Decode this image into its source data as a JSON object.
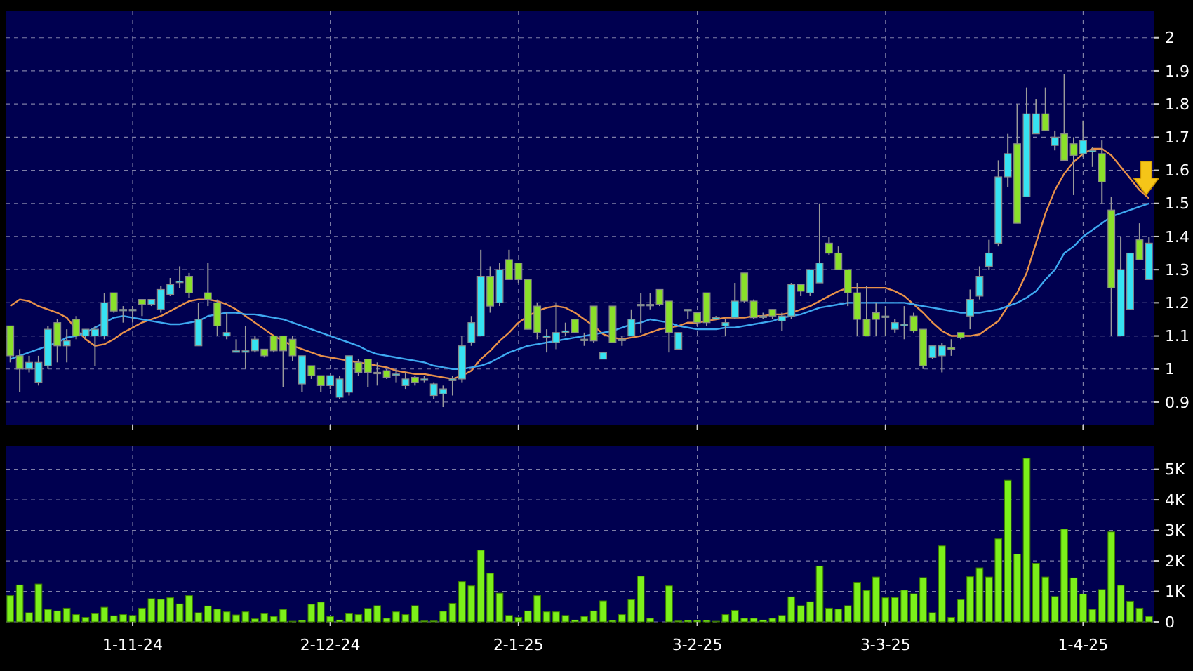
{
  "chart_data": [
    {
      "type": "candlestick",
      "categories": [
        null,
        null,
        null,
        null,
        null,
        null,
        null,
        null,
        null,
        null,
        null,
        null,
        null,
        null,
        null,
        null,
        null,
        null,
        null,
        null,
        null,
        null,
        null,
        null,
        null,
        null,
        null,
        null,
        null,
        null,
        null,
        null,
        null,
        null,
        null,
        null,
        null,
        null,
        null,
        null,
        null,
        null,
        null,
        null,
        null,
        null,
        null,
        null,
        null,
        null,
        null,
        null,
        null,
        null,
        null,
        null,
        null,
        null,
        null,
        null,
        null,
        null,
        null,
        null,
        null,
        null,
        null,
        null,
        null,
        null,
        null,
        null,
        null,
        null,
        null,
        null,
        null,
        null,
        null,
        null,
        null,
        null,
        null,
        null,
        null,
        null,
        null,
        null,
        null,
        null,
        null,
        null,
        null,
        null,
        null,
        null,
        null,
        null,
        null,
        null,
        null,
        null,
        null,
        null,
        null,
        null,
        null,
        null,
        null,
        null,
        null,
        null,
        null,
        null,
        null,
        null,
        null,
        null,
        null,
        null,
        null,
        null
      ],
      "ohlc": [
        [
          1.13,
          1.13,
          1.02,
          1.04
        ],
        [
          1.04,
          1.06,
          0.93,
          1.0
        ],
        [
          1.0,
          1.04,
          0.99,
          1.02
        ],
        [
          0.96,
          1.04,
          0.95,
          1.02
        ],
        [
          1.01,
          1.13,
          1.0,
          1.12
        ],
        [
          1.14,
          1.15,
          1.02,
          1.07
        ],
        [
          1.07,
          1.12,
          1.02,
          1.085
        ],
        [
          1.15,
          1.16,
          1.09,
          1.1
        ],
        [
          1.1,
          1.12,
          1.09,
          1.12
        ],
        [
          1.1,
          1.13,
          1.01,
          1.12
        ],
        [
          1.1,
          1.23,
          1.09,
          1.2
        ],
        [
          1.23,
          1.23,
          1.17,
          1.175
        ],
        [
          1.18,
          1.19,
          1.14,
          1.18
        ],
        [
          1.18,
          1.19,
          1.14,
          1.18
        ],
        [
          1.21,
          1.21,
          1.16,
          1.195
        ],
        [
          1.195,
          1.21,
          1.19,
          1.21
        ],
        [
          1.18,
          1.25,
          1.17,
          1.24
        ],
        [
          1.225,
          1.275,
          1.22,
          1.255
        ],
        [
          1.265,
          1.31,
          1.245,
          1.265
        ],
        [
          1.28,
          1.29,
          1.215,
          1.23
        ],
        [
          1.07,
          1.2,
          1.07,
          1.15
        ],
        [
          1.23,
          1.32,
          1.19,
          1.21
        ],
        [
          1.2,
          1.21,
          1.1,
          1.13
        ],
        [
          1.1,
          1.17,
          1.09,
          1.11
        ],
        [
          1.055,
          1.09,
          1.05,
          1.055
        ],
        [
          1.055,
          1.13,
          1.0,
          1.055
        ],
        [
          1.055,
          1.1,
          1.05,
          1.09
        ],
        [
          1.06,
          1.06,
          1.035,
          1.04
        ],
        [
          1.1,
          1.1,
          1.05,
          1.055
        ],
        [
          1.1,
          1.1,
          0.945,
          1.055
        ],
        [
          1.09,
          1.1,
          1.025,
          1.04
        ],
        [
          0.955,
          1.04,
          0.93,
          1.04
        ],
        [
          1.01,
          1.01,
          0.97,
          0.98
        ],
        [
          0.98,
          0.98,
          0.93,
          0.95
        ],
        [
          0.95,
          0.98,
          0.94,
          0.98
        ],
        [
          0.915,
          0.98,
          0.91,
          0.97
        ],
        [
          0.93,
          1.04,
          0.92,
          1.04
        ],
        [
          1.02,
          1.03,
          0.98,
          0.99
        ],
        [
          1.03,
          1.03,
          0.945,
          0.99
        ],
        [
          0.99,
          1.02,
          0.95,
          0.99
        ],
        [
          0.995,
          1.0,
          0.97,
          0.975
        ],
        [
          0.985,
          1.0,
          0.96,
          0.985
        ],
        [
          0.95,
          0.99,
          0.94,
          0.97
        ],
        [
          0.975,
          0.98,
          0.95,
          0.96
        ],
        [
          0.97,
          0.98,
          0.96,
          0.97
        ],
        [
          0.92,
          0.96,
          0.91,
          0.955
        ],
        [
          0.925,
          0.95,
          0.885,
          0.94
        ],
        [
          0.965,
          0.98,
          0.92,
          0.97
        ],
        [
          0.97,
          1.1,
          0.96,
          1.07
        ],
        [
          1.08,
          1.16,
          1.07,
          1.14
        ],
        [
          1.1,
          1.36,
          1.1,
          1.28
        ],
        [
          1.28,
          1.31,
          1.17,
          1.19
        ],
        [
          1.2,
          1.32,
          1.19,
          1.3
        ],
        [
          1.33,
          1.36,
          1.27,
          1.27
        ],
        [
          1.32,
          1.32,
          1.26,
          1.27
        ],
        [
          1.27,
          1.27,
          1.12,
          1.12
        ],
        [
          1.19,
          1.2,
          1.09,
          1.11
        ],
        [
          1.1,
          1.12,
          1.05,
          1.1
        ],
        [
          1.08,
          1.2,
          1.06,
          1.11
        ],
        [
          1.115,
          1.14,
          1.1,
          1.115
        ],
        [
          1.15,
          1.15,
          1.11,
          1.11
        ],
        [
          1.09,
          1.11,
          1.07,
          1.09
        ],
        [
          1.19,
          1.19,
          1.08,
          1.085
        ],
        [
          1.03,
          1.05,
          1.03,
          1.05
        ],
        [
          1.19,
          1.19,
          1.08,
          1.08
        ],
        [
          1.09,
          1.1,
          1.07,
          1.09
        ],
        [
          1.1,
          1.18,
          1.1,
          1.15
        ],
        [
          1.195,
          1.23,
          1.11,
          1.195
        ],
        [
          1.195,
          1.23,
          1.18,
          1.195
        ],
        [
          1.24,
          1.24,
          1.19,
          1.195
        ],
        [
          1.205,
          1.205,
          1.05,
          1.11
        ],
        [
          1.06,
          1.11,
          1.06,
          1.11
        ],
        [
          1.18,
          1.18,
          1.15,
          1.18
        ],
        [
          1.17,
          1.17,
          1.13,
          1.14
        ],
        [
          1.23,
          1.23,
          1.13,
          1.14
        ],
        [
          1.155,
          1.16,
          1.15,
          1.155
        ],
        [
          1.13,
          1.15,
          1.1,
          1.14
        ],
        [
          1.155,
          1.26,
          1.15,
          1.205
        ],
        [
          1.29,
          1.29,
          1.2,
          1.205
        ],
        [
          1.205,
          1.21,
          1.15,
          1.155
        ],
        [
          1.16,
          1.17,
          1.15,
          1.16
        ],
        [
          1.18,
          1.18,
          1.15,
          1.16
        ],
        [
          1.145,
          1.17,
          1.115,
          1.16
        ],
        [
          1.16,
          1.26,
          1.15,
          1.255
        ],
        [
          1.255,
          1.255,
          1.22,
          1.235
        ],
        [
          1.23,
          1.3,
          1.22,
          1.3
        ],
        [
          1.26,
          1.5,
          1.26,
          1.32
        ],
        [
          1.38,
          1.4,
          1.345,
          1.35
        ],
        [
          1.35,
          1.37,
          1.3,
          1.3
        ],
        [
          1.3,
          1.3,
          1.19,
          1.23
        ],
        [
          1.23,
          1.26,
          1.1,
          1.15
        ],
        [
          1.15,
          1.25,
          1.1,
          1.1
        ],
        [
          1.17,
          1.2,
          1.1,
          1.15
        ],
        [
          1.16,
          1.19,
          1.1,
          1.16
        ],
        [
          1.12,
          1.15,
          1.11,
          1.14
        ],
        [
          1.135,
          1.19,
          1.09,
          1.135
        ],
        [
          1.16,
          1.17,
          1.11,
          1.115
        ],
        [
          1.12,
          1.12,
          1.0,
          1.01
        ],
        [
          1.035,
          1.07,
          1.03,
          1.07
        ],
        [
          1.04,
          1.08,
          0.99,
          1.07
        ],
        [
          1.065,
          1.09,
          1.04,
          1.06
        ],
        [
          1.11,
          1.11,
          1.09,
          1.095
        ],
        [
          1.16,
          1.24,
          1.12,
          1.21
        ],
        [
          1.22,
          1.31,
          1.21,
          1.28
        ],
        [
          1.31,
          1.39,
          1.3,
          1.35
        ],
        [
          1.38,
          1.63,
          1.37,
          1.58
        ],
        [
          1.58,
          1.71,
          1.55,
          1.65
        ],
        [
          1.68,
          1.8,
          1.44,
          1.44
        ],
        [
          1.52,
          1.85,
          1.52,
          1.77
        ],
        [
          1.71,
          1.815,
          1.71,
          1.77
        ],
        [
          1.77,
          1.85,
          1.72,
          1.72
        ],
        [
          1.675,
          1.72,
          1.66,
          1.7
        ],
        [
          1.71,
          1.89,
          1.63,
          1.63
        ],
        [
          1.68,
          1.7,
          1.525,
          1.645
        ],
        [
          1.65,
          1.75,
          1.64,
          1.69
        ],
        [
          1.66,
          1.67,
          1.61,
          1.66
        ],
        [
          1.65,
          1.69,
          1.5,
          1.565
        ],
        [
          1.48,
          1.52,
          1.1,
          1.245
        ],
        [
          1.1,
          1.4,
          1.1,
          1.3
        ],
        [
          1.18,
          1.35,
          1.18,
          1.35
        ],
        [
          1.39,
          1.44,
          1.33,
          1.33
        ],
        [
          1.27,
          1.4,
          1.27,
          1.38
        ]
      ],
      "colors": [
        "#8ae02a",
        "#8ae02a",
        "#36e2f2",
        "#36e2f2",
        "#36e2f2",
        "#8ae02a",
        "#36e2f2",
        "#8ae02a",
        "#36e2f2",
        "#36e2f2",
        "#36e2f2",
        "#8ae02a",
        "#36e2f2",
        "#36e2f2",
        "#8ae02a",
        "#36e2f2",
        "#36e2f2",
        "#36e2f2",
        "#36e2f2",
        "#8ae02a",
        "#36e2f2",
        "#8ae02a",
        "#8ae02a",
        "#36e2f2",
        "#36e2f2",
        "#36e2f2",
        "#36e2f2",
        "#8ae02a",
        "#8ae02a",
        "#8ae02a",
        "#8ae02a",
        "#36e2f2",
        "#8ae02a",
        "#8ae02a",
        "#36e2f2",
        "#36e2f2",
        "#36e2f2",
        "#8ae02a",
        "#8ae02a",
        "#36e2f2",
        "#8ae02a",
        "#36e2f2",
        "#36e2f2",
        "#8ae02a",
        "#36e2f2",
        "#36e2f2",
        "#36e2f2",
        "#36e2f2",
        "#36e2f2",
        "#36e2f2",
        "#36e2f2",
        "#8ae02a",
        "#36e2f2",
        "#8ae02a",
        "#8ae02a",
        "#8ae02a",
        "#8ae02a",
        "#36e2f2",
        "#36e2f2",
        "#36e2f2",
        "#8ae02a",
        "#36e2f2",
        "#8ae02a",
        "#36e2f2",
        "#8ae02a",
        "#36e2f2",
        "#36e2f2",
        "#36e2f2",
        "#36e2f2",
        "#8ae02a",
        "#8ae02a",
        "#36e2f2",
        "#36e2f2",
        "#8ae02a",
        "#8ae02a",
        "#36e2f2",
        "#36e2f2",
        "#36e2f2",
        "#8ae02a",
        "#8ae02a",
        "#36e2f2",
        "#8ae02a",
        "#36e2f2",
        "#36e2f2",
        "#8ae02a",
        "#36e2f2",
        "#36e2f2",
        "#8ae02a",
        "#8ae02a",
        "#8ae02a",
        "#8ae02a",
        "#8ae02a",
        "#8ae02a",
        "#36e2f2",
        "#36e2f2",
        "#36e2f2",
        "#8ae02a",
        "#8ae02a",
        "#36e2f2",
        "#36e2f2",
        "#8ae02a",
        "#8ae02a",
        "#36e2f2",
        "#36e2f2",
        "#36e2f2",
        "#36e2f2",
        "#36e2f2",
        "#8ae02a",
        "#36e2f2",
        "#36e2f2",
        "#8ae02a",
        "#36e2f2",
        "#8ae02a",
        "#8ae02a",
        "#36e2f2",
        "#36e2f2",
        "#8ae02a",
        "#8ae02a",
        "#36e2f2",
        "#36e2f2",
        "#8ae02a",
        "#36e2f2"
      ],
      "series": [
        {
          "type": "line",
          "color": "#e8914a",
          "values": [
            1.19,
            1.21,
            1.205,
            1.19,
            1.18,
            1.17,
            1.155,
            1.12,
            1.09,
            1.07,
            1.075,
            1.09,
            1.11,
            1.125,
            1.14,
            1.15,
            1.16,
            1.175,
            1.19,
            1.205,
            1.21,
            1.21,
            1.205,
            1.195,
            1.18,
            1.16,
            1.14,
            1.12,
            1.1,
            1.085,
            1.07,
            1.06,
            1.05,
            1.04,
            1.035,
            1.03,
            1.025,
            1.02,
            1.015,
            1.01,
            1.005,
            0.995,
            0.99,
            0.985,
            0.985,
            0.98,
            0.975,
            0.97,
            0.98,
            0.995,
            1.03,
            1.055,
            1.085,
            1.11,
            1.14,
            1.16,
            1.175,
            1.185,
            1.19,
            1.185,
            1.17,
            1.15,
            1.13,
            1.105,
            1.095,
            1.09,
            1.095,
            1.1,
            1.11,
            1.12,
            1.125,
            1.13,
            1.14,
            1.14,
            1.145,
            1.15,
            1.155,
            1.155,
            1.155,
            1.16,
            1.16,
            1.165,
            1.165,
            1.17,
            1.18,
            1.19,
            1.205,
            1.22,
            1.235,
            1.245,
            1.245,
            1.245,
            1.245,
            1.245,
            1.235,
            1.22,
            1.195,
            1.17,
            1.14,
            1.115,
            1.1,
            1.1,
            1.1,
            1.105,
            1.125,
            1.145,
            1.19,
            1.23,
            1.29,
            1.38,
            1.47,
            1.54,
            1.59,
            1.625,
            1.65,
            1.665,
            1.665,
            1.645,
            1.61,
            1.575,
            1.54,
            1.515
          ]
        },
        {
          "type": "line",
          "color": "#3ea8f0",
          "values": [
            1.03,
            1.04,
            1.05,
            1.06,
            1.07,
            1.08,
            1.095,
            1.1,
            1.11,
            1.125,
            1.14,
            1.155,
            1.16,
            1.155,
            1.15,
            1.145,
            1.14,
            1.135,
            1.135,
            1.14,
            1.145,
            1.16,
            1.165,
            1.17,
            1.17,
            1.165,
            1.165,
            1.16,
            1.155,
            1.15,
            1.14,
            1.13,
            1.12,
            1.11,
            1.1,
            1.09,
            1.08,
            1.07,
            1.055,
            1.045,
            1.04,
            1.035,
            1.03,
            1.025,
            1.02,
            1.01,
            1.005,
            1.0,
            1.0,
            1.005,
            1.01,
            1.02,
            1.035,
            1.05,
            1.06,
            1.07,
            1.075,
            1.08,
            1.085,
            1.09,
            1.095,
            1.1,
            1.105,
            1.11,
            1.115,
            1.125,
            1.135,
            1.14,
            1.15,
            1.145,
            1.14,
            1.13,
            1.125,
            1.12,
            1.12,
            1.12,
            1.125,
            1.125,
            1.13,
            1.135,
            1.14,
            1.145,
            1.155,
            1.16,
            1.165,
            1.175,
            1.185,
            1.19,
            1.195,
            1.2,
            1.2,
            1.2,
            1.2,
            1.2,
            1.2,
            1.2,
            1.195,
            1.19,
            1.185,
            1.18,
            1.175,
            1.17,
            1.17,
            1.17,
            1.175,
            1.18,
            1.19,
            1.2,
            1.215,
            1.235,
            1.27,
            1.3,
            1.35,
            1.37,
            1.4,
            1.42,
            1.44,
            1.46,
            1.47,
            1.48,
            1.49,
            1.5
          ]
        }
      ],
      "ylim": [
        0.83,
        2.08
      ],
      "yticks": [
        0.9,
        1,
        1.1,
        1.2,
        1.3,
        1.4,
        1.5,
        1.6,
        1.7,
        1.8,
        1.9,
        2
      ],
      "grid": true,
      "tick_labels": "y"
    },
    {
      "type": "bar",
      "categories": [
        null,
        null,
        null,
        null,
        null,
        null,
        null,
        null,
        null,
        null,
        null,
        null,
        null,
        "1-11-24",
        null,
        null,
        null,
        null,
        null,
        null,
        null,
        null,
        null,
        null,
        null,
        null,
        null,
        null,
        null,
        null,
        null,
        null,
        null,
        null,
        "2-12-24",
        null,
        null,
        null,
        null,
        null,
        null,
        null,
        null,
        null,
        null,
        null,
        null,
        null,
        null,
        null,
        null,
        null,
        null,
        null,
        "2-1-25",
        null,
        null,
        null,
        null,
        null,
        null,
        null,
        null,
        null,
        null,
        null,
        null,
        null,
        null,
        null,
        null,
        null,
        null,
        "3-2-25",
        null,
        null,
        null,
        null,
        null,
        null,
        null,
        null,
        null,
        null,
        null,
        null,
        null,
        null,
        null,
        null,
        null,
        null,
        null,
        "3-3-25",
        null,
        null,
        null,
        null,
        null,
        null,
        null,
        null,
        null,
        null,
        null,
        null,
        null,
        null,
        null,
        null,
        null,
        null,
        null,
        null,
        "1-4-25",
        null,
        null,
        null,
        null,
        null,
        null,
        null
      ],
      "values": [
        860,
        1210,
        300,
        1240,
        410,
        360,
        450,
        240,
        150,
        270,
        480,
        200,
        240,
        210,
        450,
        760,
        740,
        790,
        590,
        860,
        300,
        520,
        420,
        330,
        230,
        330,
        100,
        270,
        180,
        410,
        20,
        50,
        580,
        650,
        180,
        60,
        270,
        240,
        440,
        530,
        120,
        330,
        240,
        530,
        30,
        30,
        350,
        610,
        1320,
        1180,
        2350,
        1590,
        940,
        210,
        150,
        360,
        860,
        330,
        330,
        210,
        60,
        180,
        360,
        690,
        50,
        240,
        730,
        1500,
        120,
        0,
        1180,
        30,
        50,
        50,
        50,
        20,
        240,
        380,
        120,
        120,
        60,
        120,
        210,
        820,
        530,
        660,
        1830,
        450,
        420,
        530,
        1300,
        1030,
        1470,
        790,
        800,
        1040,
        920,
        1450,
        300,
        2490,
        150,
        730,
        1480,
        1770,
        1470,
        2720,
        4640,
        2220,
        5360,
        1920,
        1470,
        830,
        3040,
        1440,
        910,
        410,
        1060,
        2950,
        1200,
        680,
        450,
        180
      ],
      "color": "#7cf01a",
      "ylim": [
        0,
        5750
      ],
      "yticks": [
        0,
        {
          "value": 1000,
          "label": "1K"
        },
        {
          "value": 2000,
          "label": "2K"
        },
        {
          "value": 3000,
          "label": "3K"
        },
        {
          "value": 4000,
          "label": "4K"
        },
        {
          "value": 5000,
          "label": "5K"
        }
      ],
      "grid": true
    }
  ]
}
